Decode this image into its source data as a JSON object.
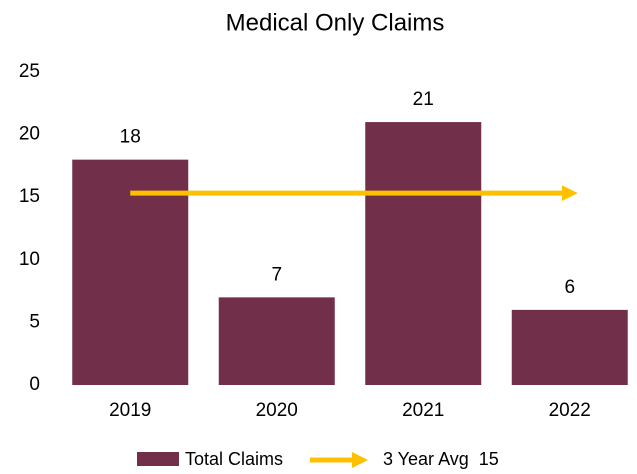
{
  "chart_data": {
    "type": "bar",
    "title": "Medical Only Claims",
    "categories": [
      "2019",
      "2020",
      "2021",
      "2022"
    ],
    "series": [
      {
        "name": "Total Claims",
        "type": "bar",
        "color": "#722F4A",
        "values": [
          18,
          7,
          21,
          6
        ]
      },
      {
        "name": "3 Year Avg  15",
        "type": "line",
        "color": "#FFC000",
        "values": [
          15.33,
          15.33,
          15.33,
          15.33
        ]
      }
    ],
    "ylim": [
      0,
      25
    ],
    "yticks": [
      0,
      5,
      10,
      15,
      20,
      25
    ],
    "grid": false,
    "legend": "bottom"
  }
}
